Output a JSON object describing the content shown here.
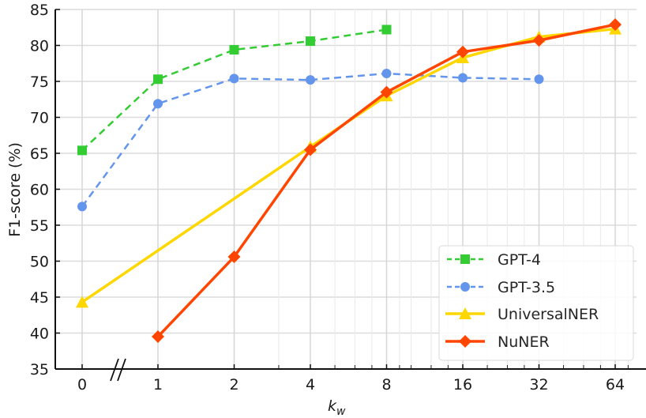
{
  "chart_data": {
    "type": "line",
    "title": "",
    "xlabel": "k_w",
    "ylabel": "F1-score (%)",
    "x_scale": "log2 with broken axis between 0 and 1",
    "categories": [
      "0",
      "1",
      "2",
      "4",
      "8",
      "16",
      "32",
      "64"
    ],
    "x": [
      0,
      1,
      2,
      4,
      8,
      16,
      32,
      64
    ],
    "ylim": [
      35,
      85
    ],
    "yticks": [
      35,
      40,
      45,
      50,
      55,
      60,
      65,
      70,
      75,
      80,
      85
    ],
    "grid": true,
    "legend_position": "lower right",
    "series": [
      {
        "name": "GPT-4",
        "color": "#33cc33",
        "marker": "square",
        "linestyle": "dashed",
        "x": [
          0,
          1,
          2,
          4,
          8
        ],
        "values": [
          65.4,
          75.3,
          79.4,
          80.6,
          82.2
        ]
      },
      {
        "name": "GPT-3.5",
        "color": "#6495ed",
        "marker": "circle",
        "linestyle": "dashed",
        "x": [
          0,
          1,
          2,
          4,
          8,
          16,
          32
        ],
        "values": [
          57.6,
          71.9,
          75.4,
          75.2,
          76.1,
          75.5,
          75.3
        ]
      },
      {
        "name": "UniversalNER",
        "color": "#ffd700",
        "marker": "triangle",
        "linestyle": "solid",
        "x": [
          0,
          4,
          8,
          16,
          32,
          64
        ],
        "values": [
          44.3,
          65.9,
          73.0,
          78.3,
          81.2,
          82.3
        ]
      },
      {
        "name": "NuNER",
        "color": "#ff4500",
        "marker": "diamond",
        "linestyle": "solid",
        "x": [
          1,
          2,
          4,
          8,
          16,
          32,
          64
        ],
        "values": [
          39.5,
          50.6,
          65.5,
          73.5,
          79.1,
          80.7,
          82.9
        ]
      }
    ]
  },
  "axes": {
    "xlabel_main": "k",
    "xlabel_sub": "w",
    "ylabel": "F1-score (%)",
    "break_mark": "//"
  },
  "legend": {
    "items": [
      {
        "label": "GPT-4"
      },
      {
        "label": "GPT-3.5"
      },
      {
        "label": "UniversalNER"
      },
      {
        "label": "NuNER"
      }
    ]
  }
}
